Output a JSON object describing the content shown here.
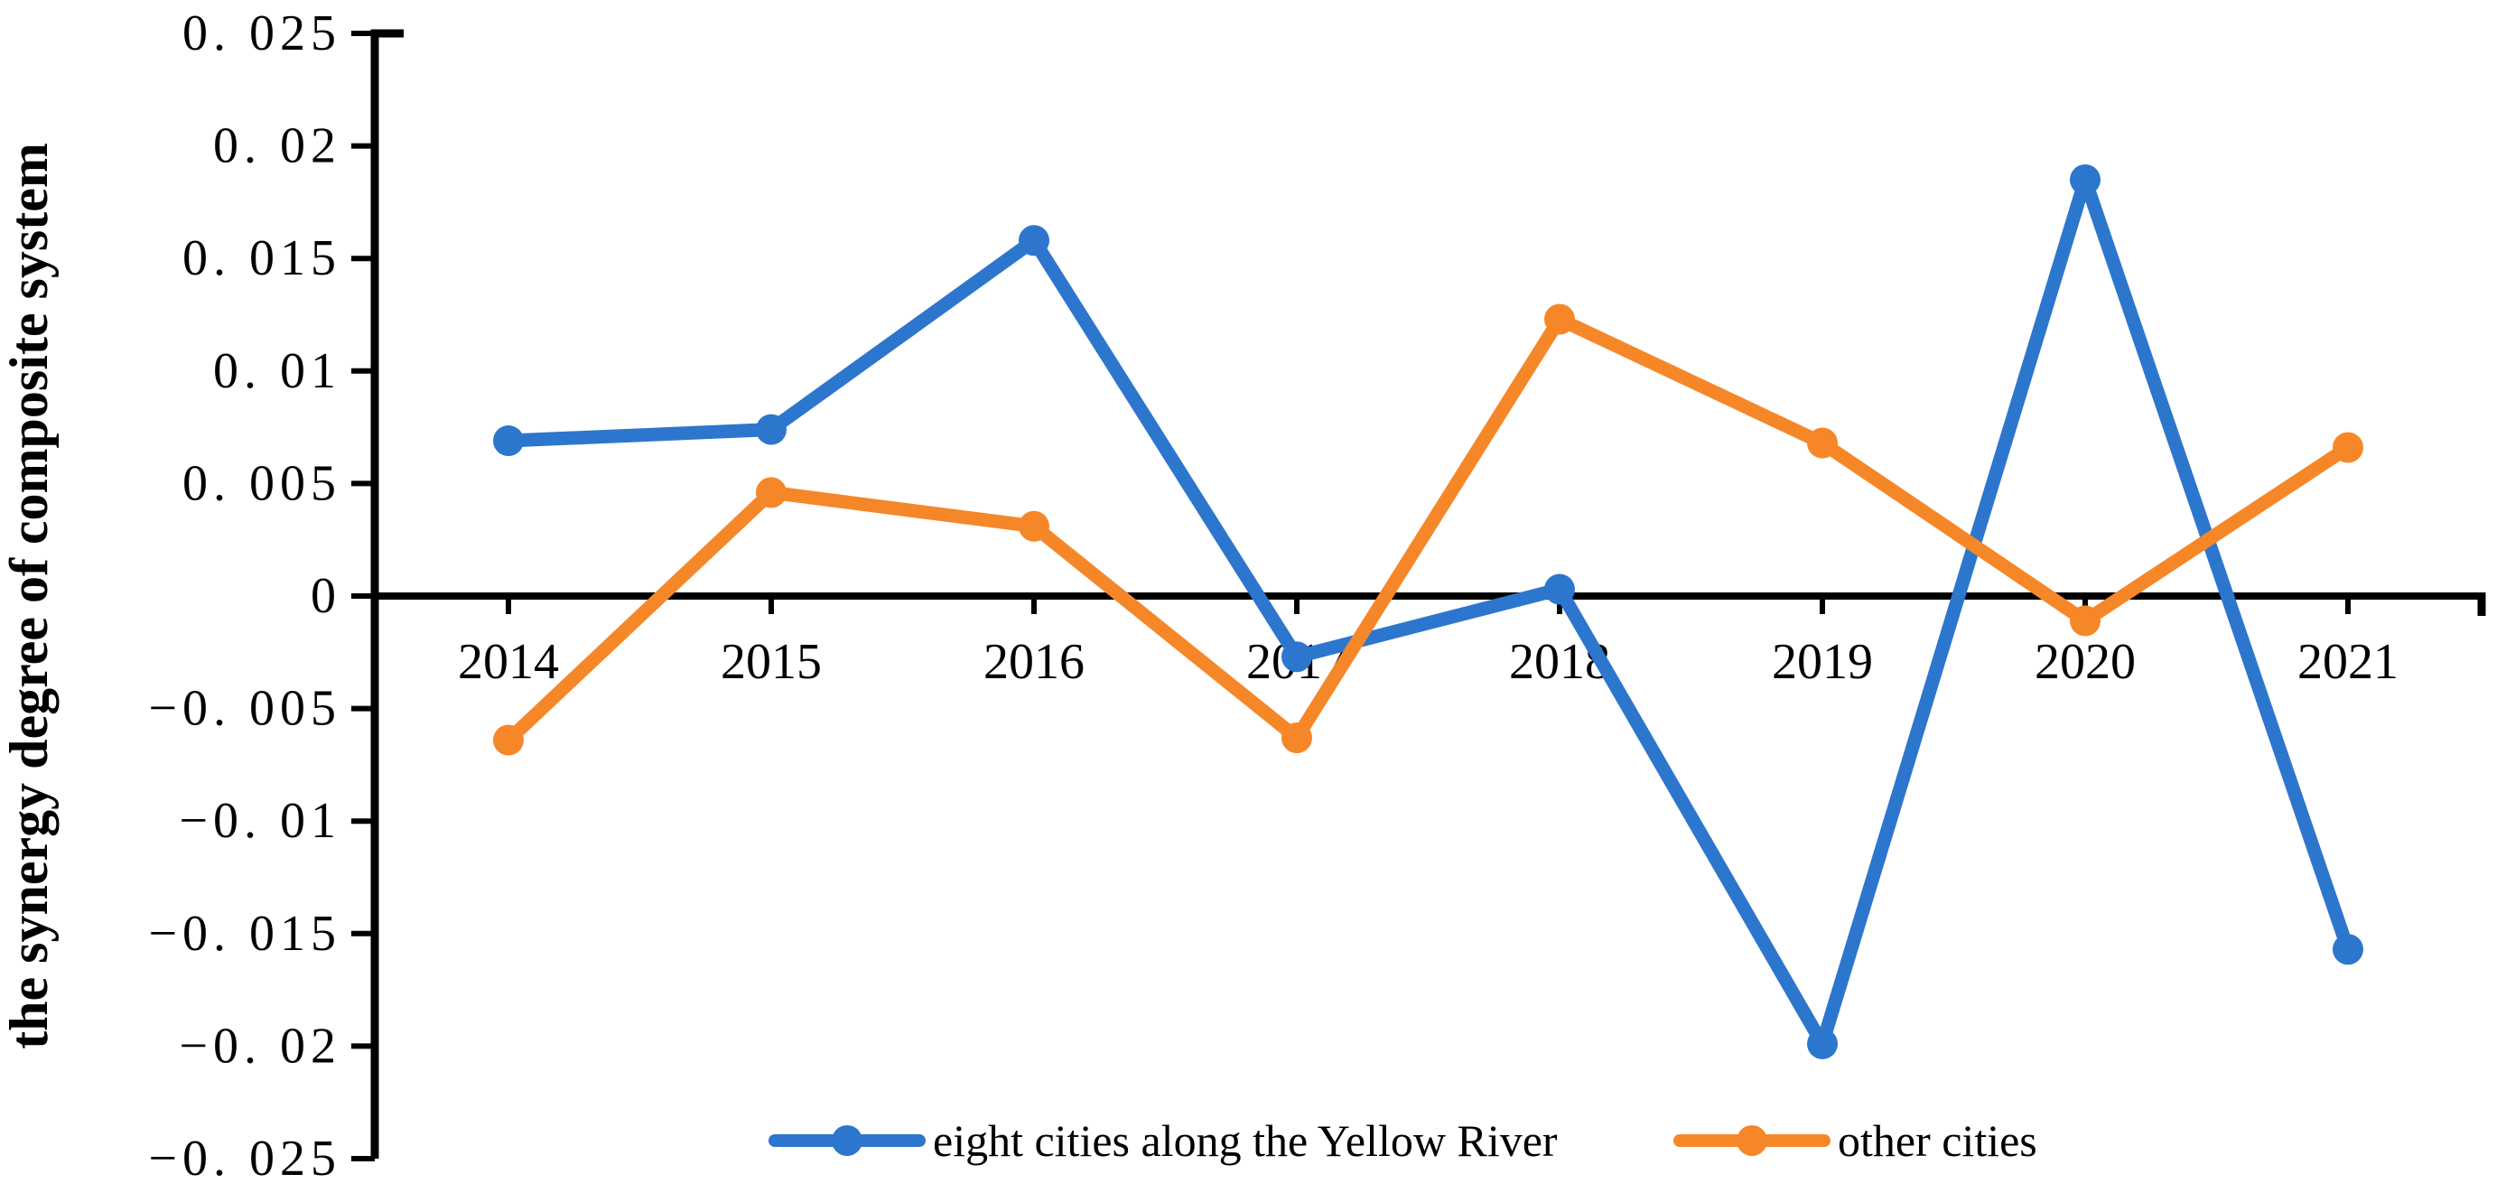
{
  "page": {
    "background": "#ffffff",
    "axis_color": "#000000",
    "text_color": "#000000"
  },
  "chart_data": {
    "type": "line",
    "title": "",
    "xlabel": "",
    "ylabel": "the synergy degree of composite system",
    "categories": [
      "2014",
      "2015",
      "2016",
      "2017",
      "2018",
      "2019",
      "2020",
      "2021"
    ],
    "series": [
      {
        "name": "eight cities along the Yellow River",
        "color": "#2D76CD",
        "marker": "circle",
        "values": [
          0.0069,
          0.0074,
          0.0158,
          -0.0027,
          0.0003,
          -0.0199,
          0.0185,
          -0.0157
        ]
      },
      {
        "name": "other cities",
        "color": "#F68729",
        "marker": "circle",
        "values": [
          -0.0064,
          0.0046,
          0.0031,
          -0.0063,
          0.0123,
          0.0068,
          -0.0011,
          0.0066
        ]
      }
    ],
    "ylim": [
      -0.025,
      0.025
    ],
    "ytick_step": 0.005,
    "ytick_labels": [
      "0. 025",
      "0. 02",
      "0. 015",
      "0. 01",
      "0. 005",
      "0",
      "−0. 005",
      "−0. 01",
      "−0. 015",
      "−0. 02",
      "−0. 025"
    ],
    "grid": false,
    "legend_position": "bottom-center",
    "zero_baseline": true
  }
}
